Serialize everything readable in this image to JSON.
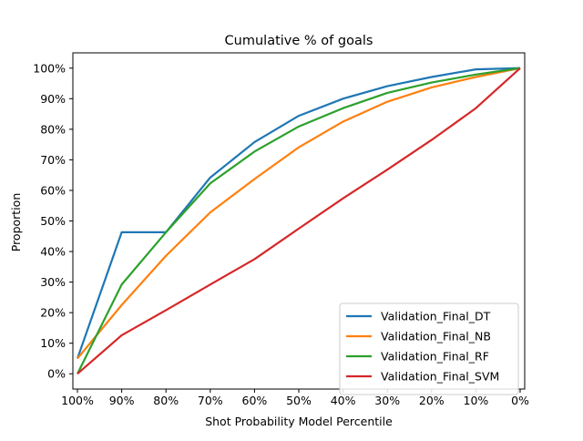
{
  "chart_data": {
    "type": "line",
    "title": "Cumulative % of goals",
    "xlabel": "Shot Probability Model Percentile",
    "ylabel": "Proportion",
    "x": [
      100,
      90,
      80,
      70,
      60,
      50,
      40,
      30,
      20,
      10,
      0
    ],
    "x_tick_labels": [
      "100%",
      "90%",
      "80%",
      "70%",
      "60%",
      "50%",
      "40%",
      "30%",
      "20%",
      "10%",
      "0%"
    ],
    "xlim": [
      100,
      0
    ],
    "y_ticks": [
      0,
      10,
      20,
      30,
      40,
      50,
      60,
      70,
      80,
      90,
      100
    ],
    "y_tick_labels": [
      "0%",
      "10%",
      "20%",
      "30%",
      "40%",
      "50%",
      "60%",
      "70%",
      "80%",
      "90%",
      "100%"
    ],
    "ylim": [
      -5,
      105
    ],
    "grid": false,
    "legend_position": "lower-right",
    "series": [
      {
        "name": "Validation_Final_DT",
        "color": "#1f77b4",
        "values": [
          5,
          46.3,
          46.3,
          64.2,
          75.8,
          84.4,
          90.0,
          94.1,
          97.1,
          99.6,
          100
        ]
      },
      {
        "name": "Validation_Final_NB",
        "color": "#ff7f0e",
        "values": [
          5,
          22.5,
          38.6,
          52.8,
          63.7,
          74.1,
          82.5,
          89.0,
          93.7,
          97.1,
          100
        ]
      },
      {
        "name": "Validation_Final_RF",
        "color": "#2ca02c",
        "values": [
          0,
          29.2,
          46.3,
          62.3,
          72.7,
          80.9,
          86.9,
          91.9,
          95.3,
          97.9,
          100
        ]
      },
      {
        "name": "Validation_Final_SVM",
        "color": "#d62728",
        "values": [
          0,
          12.6,
          20.8,
          29.2,
          37.5,
          47.5,
          57.4,
          66.8,
          76.5,
          86.9,
          100
        ]
      }
    ]
  }
}
